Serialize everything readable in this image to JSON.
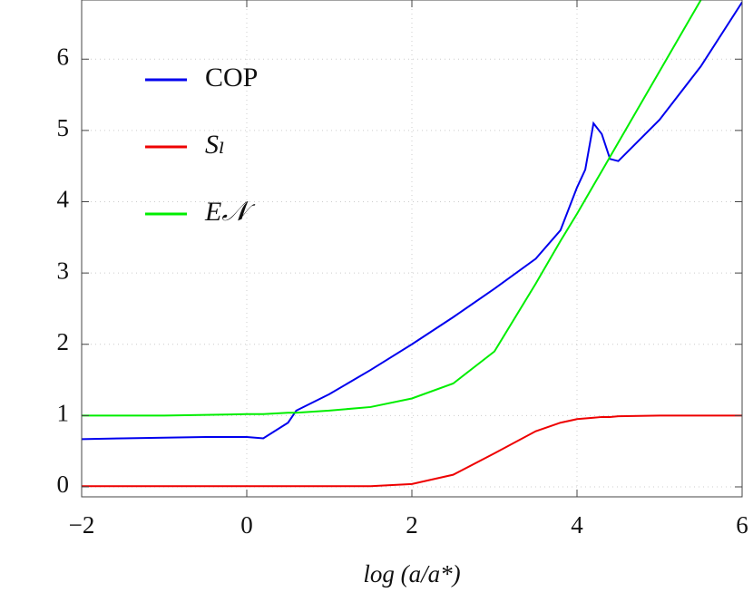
{
  "chart_data": {
    "type": "line",
    "x_label": "log (a/a*)",
    "x": [
      -2,
      -1.5,
      -1,
      -0.5,
      0,
      0.2,
      0.5,
      0.6,
      1,
      1.5,
      2,
      2.5,
      3,
      3.5,
      3.8,
      4,
      4.1,
      4.2,
      4.3,
      4.4,
      4.5,
      5,
      5.5,
      6
    ],
    "series": [
      {
        "name": "COP",
        "color": "#0000ee",
        "values": [
          0.67,
          0.68,
          0.69,
          0.7,
          0.7,
          0.68,
          0.9,
          1.07,
          1.3,
          1.64,
          2.0,
          2.38,
          2.78,
          3.2,
          3.6,
          4.2,
          4.45,
          5.1,
          4.95,
          4.6,
          4.57,
          5.15,
          5.9,
          6.8
        ]
      },
      {
        "name": "Sₗ",
        "color": "#ee0000",
        "values": [
          0.01,
          0.01,
          0.01,
          0.01,
          0.01,
          0.01,
          0.01,
          0.01,
          0.01,
          0.01,
          0.04,
          0.17,
          0.47,
          0.78,
          0.9,
          0.95,
          0.96,
          0.97,
          0.98,
          0.98,
          0.99,
          1.0,
          1.0,
          1.0
        ]
      },
      {
        "name": "E𝒩",
        "color": "#00ee00",
        "values": [
          1.0,
          1.0,
          1.0,
          1.01,
          1.02,
          1.02,
          1.04,
          1.04,
          1.07,
          1.12,
          1.24,
          1.45,
          1.9,
          2.85,
          3.45,
          3.83,
          4.03,
          4.23,
          4.43,
          4.63,
          4.83,
          5.83,
          6.83,
          null
        ]
      }
    ],
    "xlim": [
      -2,
      6
    ],
    "ylim": [
      -0.14,
      6.83
    ],
    "xticks": [
      {
        "value": -2,
        "label": "−2"
      },
      0,
      2,
      4,
      6
    ],
    "yticks": [
      0,
      1,
      2,
      3,
      4,
      5,
      6
    ],
    "grid": true,
    "legend": "upper-left"
  }
}
